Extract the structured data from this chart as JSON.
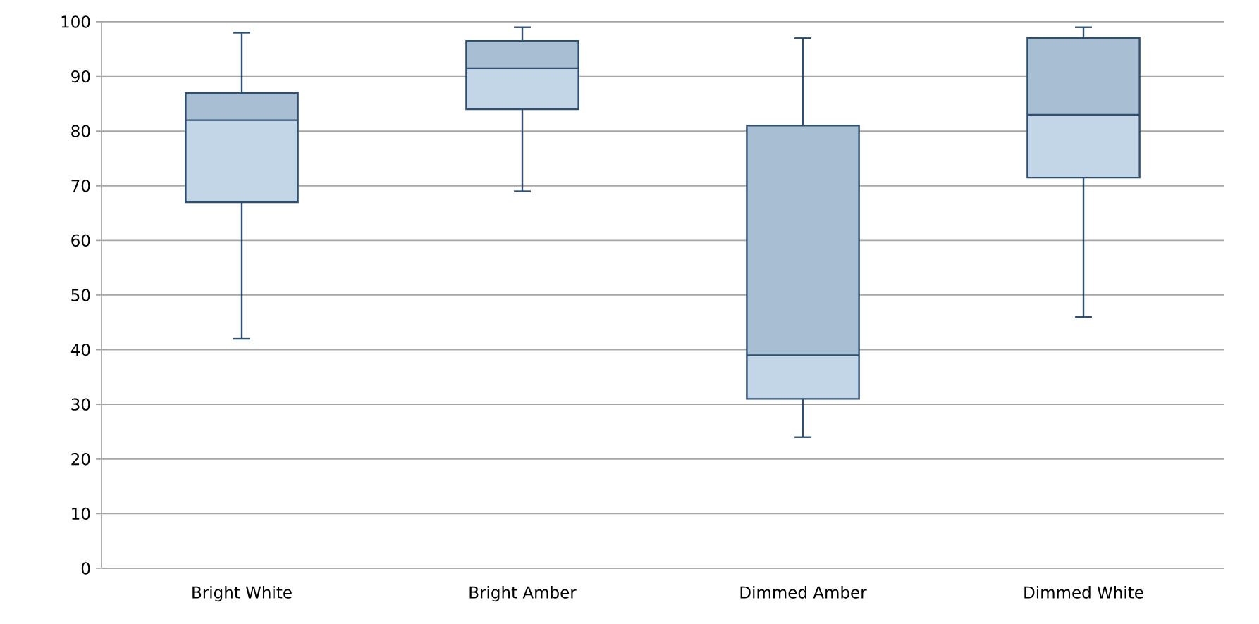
{
  "chart_data": {
    "type": "box",
    "categories": [
      "Bright White",
      "Bright Amber",
      "Dimmed Amber",
      "Dimmed White"
    ],
    "boxes": [
      {
        "low": 42,
        "q1": 67,
        "median": 82,
        "q3": 87,
        "high": 98
      },
      {
        "low": 69,
        "q1": 84,
        "median": 91.5,
        "q3": 96.5,
        "high": 99
      },
      {
        "low": 24,
        "q1": 31,
        "median": 39,
        "q3": 81,
        "high": 97
      },
      {
        "low": 46,
        "q1": 71.5,
        "median": 83,
        "q3": 97,
        "high": 99
      }
    ],
    "colors": [
      "#c3d6e8",
      "#c3d6e8",
      "#c3d6e8",
      "#c3d6e8"
    ],
    "ylim": [
      0,
      100
    ],
    "yticks": [
      0,
      10,
      20,
      30,
      40,
      50,
      60,
      70,
      80,
      90,
      100
    ],
    "grid": "y"
  }
}
